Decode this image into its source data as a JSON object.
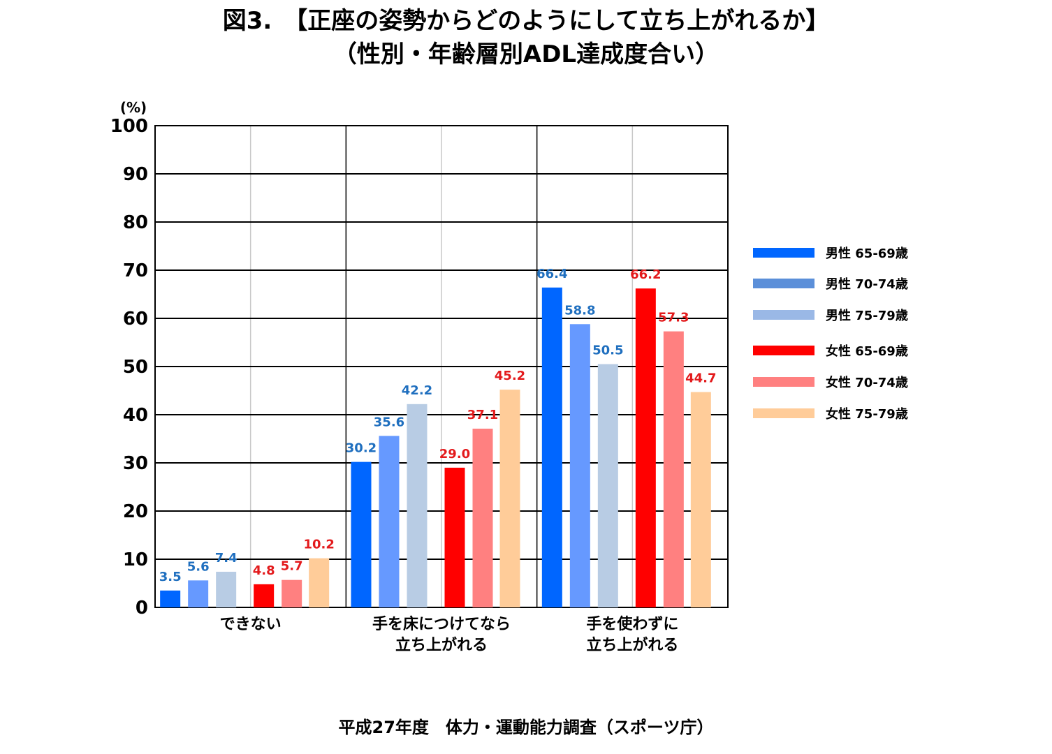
{
  "title_line1": "図3.　【正座の姿勢からどのようにして立ち上がれるか】",
  "title_line2": "（性別・年齢層別ADL達成度合い）",
  "source": "平成27年度　体力・運動能力調査（スポーツ庁）",
  "chart_data": {
    "type": "bar",
    "ylabel": "(%)",
    "ylim": [
      0,
      100
    ],
    "yticks": [
      0,
      10,
      20,
      30,
      40,
      50,
      60,
      70,
      80,
      90,
      100
    ],
    "grid": true,
    "legend_position": "right",
    "categories": [
      [
        "できない"
      ],
      [
        "手を床につけてなら",
        "立ち上がれる"
      ],
      [
        "手を使わずに",
        "立ち上がれる"
      ]
    ],
    "series": [
      {
        "name": "男性 65-69歳",
        "color": "#0066ff",
        "label_color": "#1f6fbf",
        "values": [
          3.5,
          30.2,
          66.4
        ]
      },
      {
        "name": "男性 70-74歳",
        "color": "#6699ff",
        "label_color": "#1f6fbf",
        "values": [
          5.6,
          35.6,
          58.8
        ]
      },
      {
        "name": "男性 75-79歳",
        "color": "#b8cce4",
        "label_color": "#1f6fbf",
        "values": [
          7.4,
          42.2,
          50.5
        ]
      },
      {
        "name": "女性 65-69歳",
        "color": "#ff0000",
        "label_color": "#e31a1c",
        "values": [
          4.8,
          29.0,
          66.2
        ]
      },
      {
        "name": "女性 70-74歳",
        "color": "#ff8080",
        "label_color": "#e31a1c",
        "values": [
          5.7,
          37.1,
          57.3
        ]
      },
      {
        "name": "女性 75-79歳",
        "color": "#ffcc99",
        "label_color": "#e31a1c",
        "values": [
          10.2,
          45.2,
          44.7
        ]
      }
    ],
    "legend_swatch_colors": [
      "#0066ff",
      "#5b8fd9",
      "#9ab8e6",
      "#ff0000",
      "#ff8080",
      "#ffcc99"
    ]
  }
}
